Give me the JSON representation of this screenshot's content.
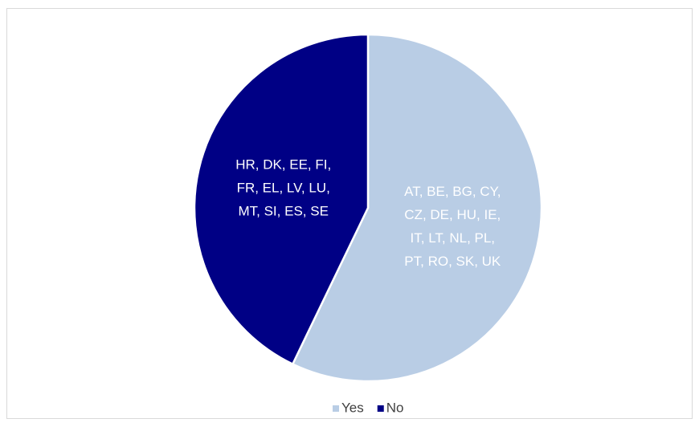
{
  "chart_data": {
    "type": "pie",
    "categories": [
      "Yes",
      "No"
    ],
    "values": [
      16,
      12
    ],
    "colors": [
      "#b9cde5",
      "#000085"
    ],
    "data_labels": [
      [
        "AT, BE, BG, CY,",
        "CZ, DE, HU, IE,",
        "IT, LT, NL, PL,",
        "PT, RO, SK, UK"
      ],
      [
        "HR, DK, EE, FI,",
        "FR, EL, LV, LU,",
        "MT, SI, ES, SE"
      ]
    ],
    "legend": "bottom"
  }
}
